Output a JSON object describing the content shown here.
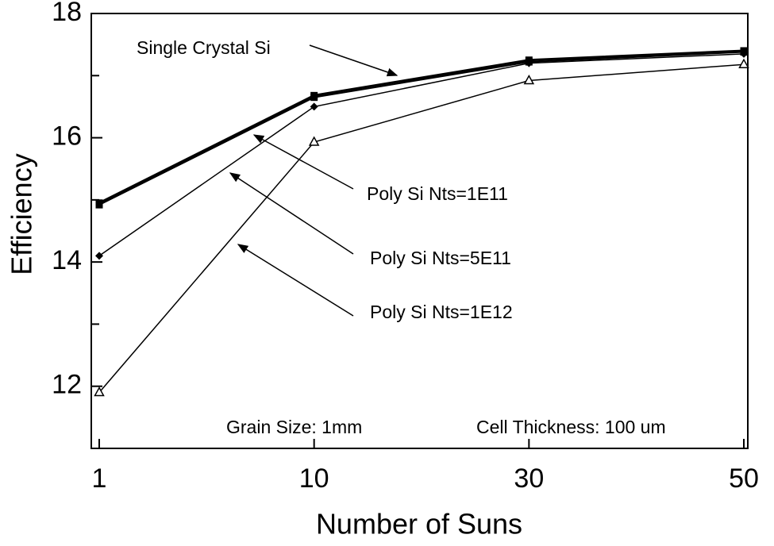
{
  "chart_data": {
    "type": "line",
    "x_label": "Number of Suns",
    "y_label": "Efficiency",
    "categories": [
      "1",
      "10",
      "30",
      "50"
    ],
    "ylim": [
      11,
      18
    ],
    "yticks": [
      12,
      14,
      16,
      18
    ],
    "yminor_ticks": [
      13,
      15,
      17
    ],
    "series": [
      {
        "name": "Single Crystal Si",
        "color": "#000000",
        "marker": "square",
        "width": 3,
        "values": [
          14.95,
          16.68,
          17.25,
          17.4
        ]
      },
      {
        "name": "Poly Si Nts=1E11",
        "color": "#000000",
        "marker": "square",
        "width": 2,
        "values": [
          14.92,
          16.65,
          17.22,
          17.38
        ]
      },
      {
        "name": "Poly Si Nts=5E11",
        "color": "#000000",
        "marker": "diamond",
        "width": 1.5,
        "values": [
          14.1,
          16.5,
          17.2,
          17.35
        ]
      },
      {
        "name": "Poly Si Nts=1E12",
        "color": "#000000",
        "marker": "triangle",
        "width": 1.5,
        "values": [
          11.9,
          15.93,
          16.92,
          17.18
        ]
      }
    ],
    "notes": [
      "Grain Size: 1mm",
      "Cell Thickness: 100 um"
    ]
  }
}
